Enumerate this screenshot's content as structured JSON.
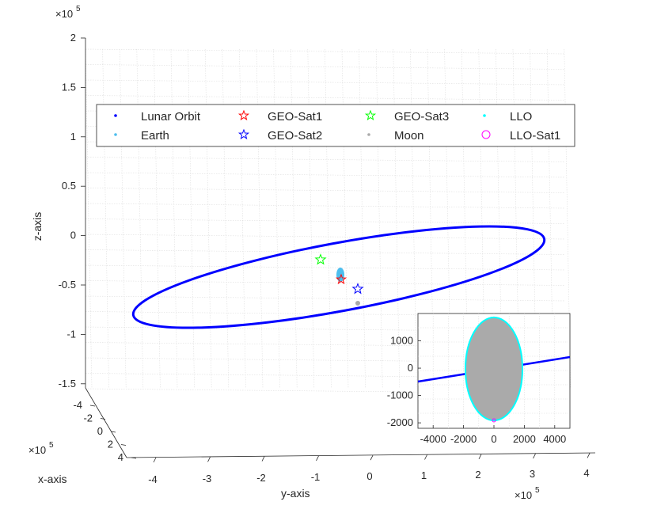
{
  "chart_data": [
    {
      "type": "line3d",
      "title": "",
      "xlabel": "x-axis",
      "ylabel": "y-axis",
      "zlabel": "z-axis",
      "grid": true,
      "legend_position": "top",
      "x_ticks": [
        "-4",
        "-2",
        "0",
        "2",
        "4"
      ],
      "x_exponent": "×10⁵",
      "y_ticks": [
        "-4",
        "-3",
        "-2",
        "-1",
        "0",
        "1",
        "2",
        "3",
        "4"
      ],
      "y_exponent": "×10⁵",
      "z_ticks": [
        "2",
        "1.5",
        "1",
        "0.5",
        "0",
        "-0.5",
        "-1",
        "-1.5"
      ],
      "z_exponent": "×10⁵",
      "xlim": [
        -400000,
        400000
      ],
      "ylim": [
        -450000,
        450000
      ],
      "zlim": [
        -150000,
        200000
      ],
      "series": [
        {
          "name": "Lunar Orbit",
          "marker": "dot",
          "color": "#0000ff",
          "shape": "ellipse",
          "semi_axis": 384400
        },
        {
          "name": "Earth",
          "marker": "dot",
          "color": "#4dbeee"
        },
        {
          "name": "GEO-Sat1",
          "marker": "star",
          "color": "#ff0000"
        },
        {
          "name": "GEO-Sat2",
          "marker": "star",
          "color": "#0000ff"
        },
        {
          "name": "GEO-Sat3",
          "marker": "star",
          "color": "#00ff00"
        },
        {
          "name": "Moon",
          "marker": "dot",
          "color": "#aaaaaa"
        },
        {
          "name": "LLO",
          "marker": "dot",
          "color": "#00ffff"
        },
        {
          "name": "LLO-Sat1",
          "marker": "circle",
          "color": "#ff00ff"
        }
      ]
    },
    {
      "type": "line",
      "title": "",
      "description": "inset zoom on Moon",
      "x_ticks": [
        "-4000",
        "-2000",
        "0",
        "2000",
        "4000"
      ],
      "y_ticks": [
        "1000",
        "0",
        "-1000",
        "-2000"
      ],
      "xlim": [
        -5000,
        5000
      ],
      "ylim": [
        -2200,
        2000
      ],
      "moon_radius": 1737,
      "llo_radius": 1837,
      "lunar_orbit_segment": {
        "x": [
          -5000,
          5000
        ],
        "y": [
          -450,
          450
        ]
      },
      "llo_sat_position": {
        "x": 0,
        "y": -1837
      }
    }
  ]
}
